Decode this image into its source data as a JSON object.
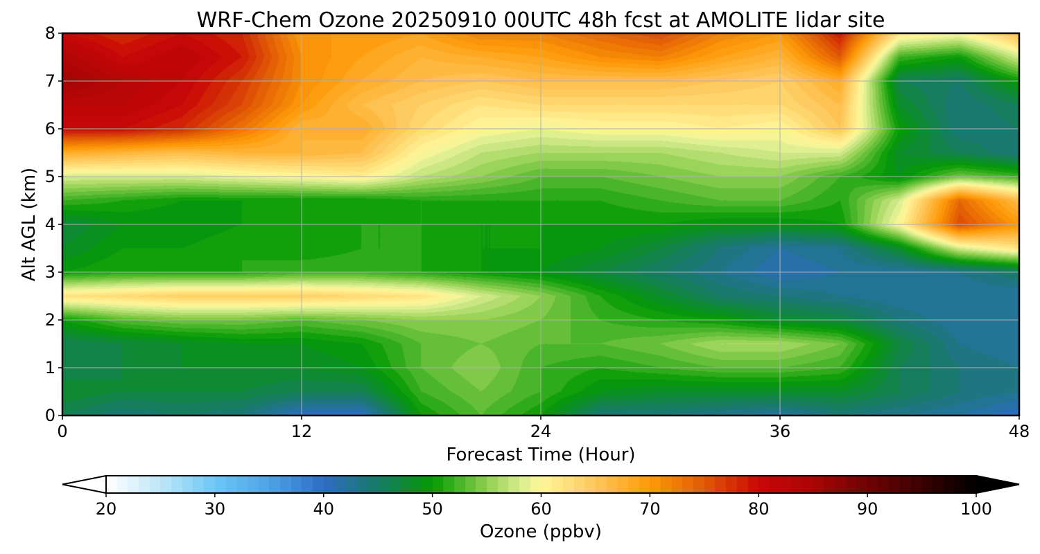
{
  "chart_data": {
    "type": "heatmap",
    "subtype": "filled-contour",
    "title": "WRF-Chem Ozone  20250910 00UTC 48h fcst at AMOLITE lidar site",
    "xlabel": "Forecast Time (Hour)",
    "ylabel": "Alt AGL (km)",
    "xlim": [
      0,
      48
    ],
    "ylim": [
      0,
      8
    ],
    "x_ticks": [
      0,
      12,
      24,
      36,
      48
    ],
    "y_ticks": [
      0,
      1,
      2,
      3,
      4,
      5,
      6,
      7,
      8
    ],
    "grid": true,
    "colorbar": {
      "label": "Ozone  (ppbv)",
      "orientation": "horizontal",
      "placement": "bottom",
      "min": 20,
      "max": 100,
      "extend": "both",
      "ticks": [
        20,
        30,
        40,
        50,
        60,
        70,
        80,
        90,
        100
      ],
      "color_stops": [
        {
          "value": 20,
          "color": "#ffffff"
        },
        {
          "value": 25,
          "color": "#bfe6f8"
        },
        {
          "value": 30,
          "color": "#6cc7f5"
        },
        {
          "value": 35,
          "color": "#4fa3e6"
        },
        {
          "value": 40,
          "color": "#2e6cc4"
        },
        {
          "value": 45,
          "color": "#187a66"
        },
        {
          "value": 50,
          "color": "#049a04"
        },
        {
          "value": 55,
          "color": "#8fcf4f"
        },
        {
          "value": 58,
          "color": "#d6ec8f"
        },
        {
          "value": 60,
          "color": "#fff79a"
        },
        {
          "value": 65,
          "color": "#fec65a"
        },
        {
          "value": 70,
          "color": "#fe9a07"
        },
        {
          "value": 75,
          "color": "#e15a05"
        },
        {
          "value": 80,
          "color": "#c80707"
        },
        {
          "value": 85,
          "color": "#aa0505"
        },
        {
          "value": 90,
          "color": "#6e0303"
        },
        {
          "value": 95,
          "color": "#3a0101"
        },
        {
          "value": 100,
          "color": "#000000"
        }
      ]
    },
    "x": [
      0,
      3,
      6,
      9,
      12,
      15,
      18,
      21,
      24,
      27,
      30,
      33,
      36,
      39,
      42,
      45,
      48
    ],
    "y": [
      0,
      0.5,
      1,
      1.5,
      2,
      2.5,
      3,
      3.5,
      4,
      4.5,
      5,
      5.5,
      6,
      6.5,
      7,
      7.5,
      8
    ],
    "z": [
      [
        46,
        44,
        45,
        44,
        40,
        40,
        50,
        53,
        50,
        44,
        44,
        43,
        42,
        44,
        43,
        42,
        40
      ],
      [
        48,
        47,
        47,
        47,
        46,
        46,
        52,
        54,
        52,
        49,
        48,
        48,
        48,
        48,
        46,
        44,
        43
      ],
      [
        46,
        47,
        48,
        48,
        48,
        49,
        53,
        55,
        52,
        51,
        52,
        53,
        53,
        52,
        46,
        44,
        43
      ],
      [
        46,
        47,
        48,
        49,
        49,
        50,
        53,
        54,
        53,
        53,
        54,
        56,
        56,
        54,
        47,
        43,
        42
      ],
      [
        50,
        53,
        54,
        54,
        53,
        54,
        55,
        55,
        54,
        52,
        51,
        50,
        48,
        47,
        44,
        42,
        42
      ],
      [
        62,
        63,
        64,
        64,
        64,
        63,
        62,
        58,
        55,
        51,
        48,
        45,
        44,
        43,
        42,
        42,
        42
      ],
      [
        50,
        51,
        51,
        51,
        52,
        52,
        51,
        50,
        49,
        47,
        45,
        43,
        41,
        42,
        42,
        43,
        45
      ],
      [
        48,
        50,
        50,
        51,
        50,
        51,
        51,
        50,
        50,
        49,
        47,
        44,
        42,
        43,
        48,
        58,
        62
      ],
      [
        47,
        49,
        49,
        50,
        51,
        51,
        51,
        50,
        50,
        50,
        50,
        49,
        49,
        50,
        60,
        76,
        70
      ],
      [
        52,
        51,
        50,
        50,
        50,
        50,
        51,
        51,
        51,
        51,
        52,
        53,
        53,
        51,
        58,
        74,
        66
      ],
      [
        58,
        58,
        58,
        59,
        60,
        61,
        57,
        55,
        53,
        53,
        54,
        55,
        55,
        52,
        49,
        54,
        52
      ],
      [
        68,
        67,
        66,
        67,
        67,
        66,
        60,
        57,
        56,
        56,
        56,
        57,
        58,
        58,
        48,
        46,
        44
      ],
      [
        80,
        80,
        78,
        73,
        67,
        68,
        63,
        60,
        59,
        60,
        60,
        61,
        60,
        65,
        50,
        44,
        45
      ],
      [
        82,
        82,
        80,
        76,
        70,
        66,
        64,
        62,
        63,
        63,
        63,
        63,
        63,
        66,
        48,
        44,
        46
      ],
      [
        86,
        83,
        81,
        77,
        71,
        68,
        66,
        65,
        66,
        66,
        66,
        65,
        64,
        68,
        46,
        45,
        50
      ],
      [
        84,
        80,
        82,
        79,
        71,
        69,
        67,
        68,
        69,
        71,
        72,
        69,
        67,
        75,
        52,
        50,
        58
      ],
      [
        80,
        78,
        80,
        78,
        70,
        70,
        69,
        72,
        72,
        74,
        76,
        72,
        70,
        79,
        62,
        60,
        66
      ]
    ]
  }
}
